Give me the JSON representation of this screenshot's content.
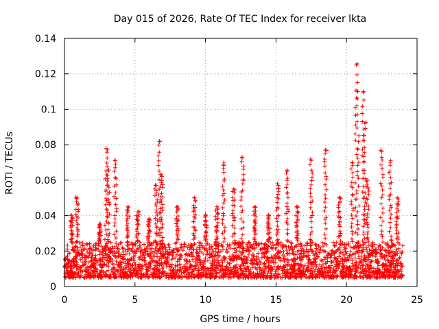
{
  "chart_data": {
    "type": "scatter",
    "title": "Day 015 of 2026, Rate Of TEC Index for receiver lkta",
    "xlabel": "GPS time / hours",
    "ylabel": "ROTI / TECUs",
    "xlim": [
      0,
      25
    ],
    "ylim": [
      0,
      0.14
    ],
    "xticks": [
      0,
      5,
      10,
      15,
      20,
      25
    ],
    "yticks": [
      0,
      0.02,
      0.04,
      0.06,
      0.08,
      0.1,
      0.12,
      0.14
    ],
    "xtick_labels": [
      "0",
      "5",
      "10",
      "15",
      "20",
      "25"
    ],
    "ytick_labels": [
      "0",
      "0.02",
      "0.04",
      "0.06",
      "0.08",
      "0.1",
      "0.12",
      "0.14"
    ],
    "grid": true,
    "marker": "+",
    "series_color": "#ff0000",
    "series": [
      {
        "name": "ROTI",
        "baseline_range": [
          0.005,
          0.025
        ],
        "x_range": [
          0,
          24
        ],
        "spikes": [
          {
            "x": 0.5,
            "y": 0.04
          },
          {
            "x": 0.9,
            "y": 0.05
          },
          {
            "x": 2.5,
            "y": 0.035
          },
          {
            "x": 2.95,
            "y": 0.078
          },
          {
            "x": 3.1,
            "y": 0.065
          },
          {
            "x": 3.6,
            "y": 0.071
          },
          {
            "x": 4.5,
            "y": 0.045
          },
          {
            "x": 5.2,
            "y": 0.042
          },
          {
            "x": 6.0,
            "y": 0.038
          },
          {
            "x": 6.5,
            "y": 0.057
          },
          {
            "x": 6.75,
            "y": 0.082
          },
          {
            "x": 6.9,
            "y": 0.062
          },
          {
            "x": 8.0,
            "y": 0.045
          },
          {
            "x": 9.2,
            "y": 0.05
          },
          {
            "x": 10.0,
            "y": 0.04
          },
          {
            "x": 10.8,
            "y": 0.045
          },
          {
            "x": 11.3,
            "y": 0.07
          },
          {
            "x": 12.0,
            "y": 0.055
          },
          {
            "x": 12.6,
            "y": 0.073
          },
          {
            "x": 13.5,
            "y": 0.045
          },
          {
            "x": 14.5,
            "y": 0.04
          },
          {
            "x": 15.1,
            "y": 0.058
          },
          {
            "x": 15.8,
            "y": 0.065
          },
          {
            "x": 16.5,
            "y": 0.045
          },
          {
            "x": 17.5,
            "y": 0.071
          },
          {
            "x": 18.5,
            "y": 0.077
          },
          {
            "x": 19.5,
            "y": 0.05
          },
          {
            "x": 20.4,
            "y": 0.07
          },
          {
            "x": 20.7,
            "y": 0.125
          },
          {
            "x": 20.8,
            "y": 0.11
          },
          {
            "x": 21.2,
            "y": 0.11
          },
          {
            "x": 21.3,
            "y": 0.092
          },
          {
            "x": 21.5,
            "y": 0.06
          },
          {
            "x": 22.5,
            "y": 0.076
          },
          {
            "x": 23.1,
            "y": 0.07
          },
          {
            "x": 23.6,
            "y": 0.05
          }
        ]
      }
    ]
  }
}
